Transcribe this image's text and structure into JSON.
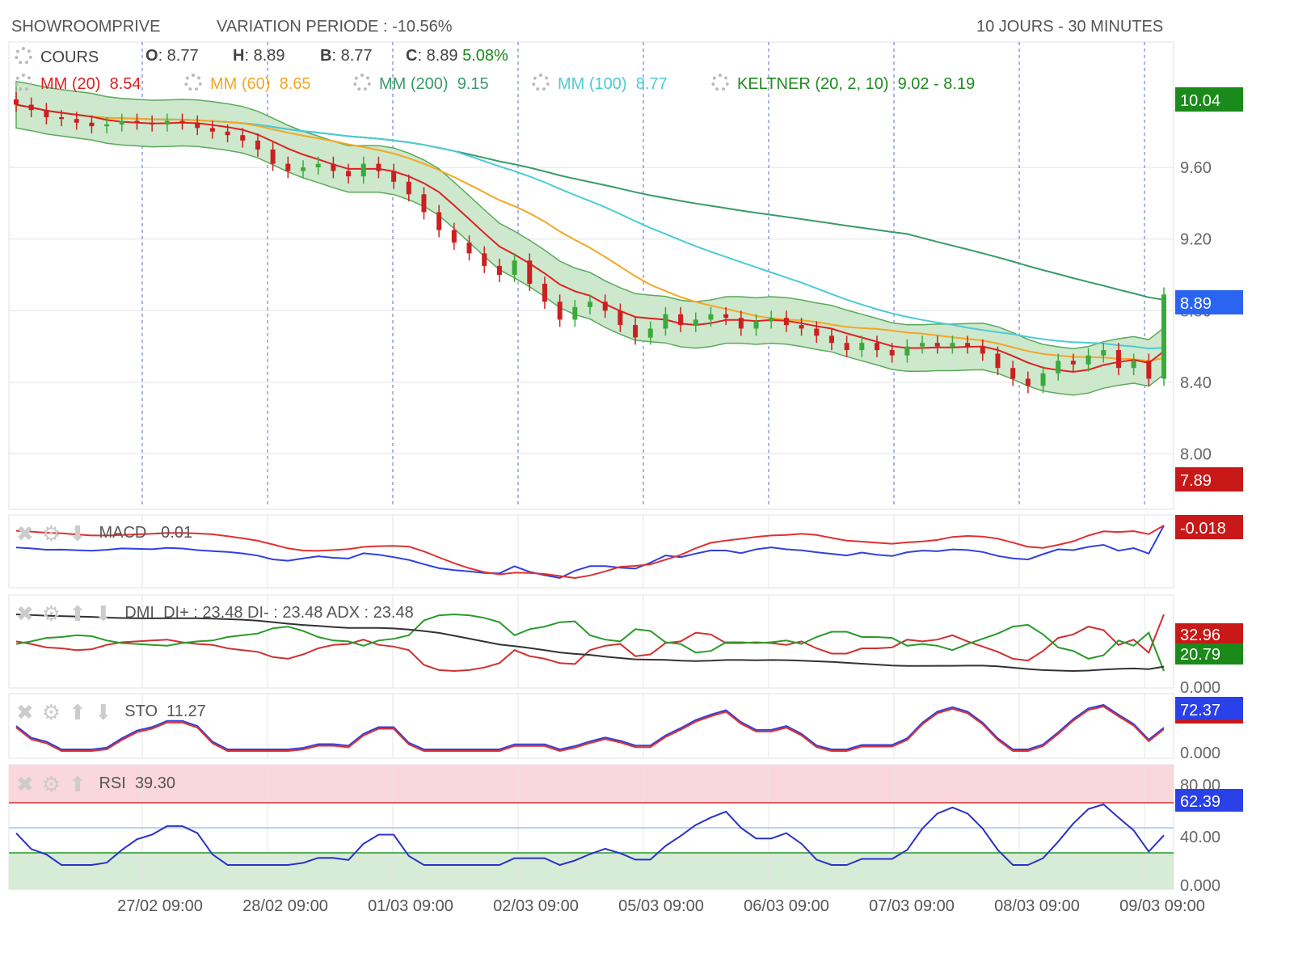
{
  "header": {
    "symbol": "SHOWROOMPRIVE",
    "variation": "VARIATION PERIODE : -10.56%",
    "timeframe": "10 JOURS - 30 MINUTES"
  },
  "quote": {
    "label": "COURS",
    "open_label": "O",
    "open": ": 8.77",
    "high_label": "H",
    "high": ": 8.89",
    "low_label": "B",
    "low": ": 8.77",
    "close_label": "C",
    "close": ": 8.89",
    "change": "5.08%"
  },
  "indicators": [
    {
      "label": "MM (20)",
      "value": "8.54",
      "color": "#e02020"
    },
    {
      "label": "MM (60)",
      "value": "8.65",
      "color": "#f5a623"
    },
    {
      "label": "MM (200)",
      "value": "9.15",
      "color": "#3a9a6a"
    },
    {
      "label": "MM (100)",
      "value": "8.77",
      "color": "#4ccbd6"
    },
    {
      "label": "KELTNER (20, 2, 10)",
      "value": "9.02 - 8.19",
      "color": "#1e8a1e"
    }
  ],
  "panels": {
    "macd": {
      "label": "MACD",
      "value": "-0.01",
      "badge": "-0.018"
    },
    "dmi": {
      "label": "DMI",
      "value": "DI+ : 23.48 DI- : 23.48 ADX : 23.48",
      "badge_red": "32.96",
      "badge_green": "20.79",
      "axis": "0.000"
    },
    "sto": {
      "label": "STO",
      "value": "11.27",
      "badge": "72.37",
      "axis": "0.000"
    },
    "rsi": {
      "label": "RSI",
      "value": "39.30",
      "badge": "62.39",
      "ticks": [
        "80.00",
        "40.00",
        "0.000"
      ]
    }
  },
  "colors": {
    "up": "#3aaa3a",
    "down": "#cc2020",
    "keltner_fill": "#cde8cd",
    "grid": "#e3e3e3",
    "vline": "#5a6ad8",
    "macd_line": "#3040e0",
    "signal_line": "#e03030",
    "badge_green": "#1a8a1a",
    "badge_red": "#c81818",
    "badge_blue": "#2a64f0"
  },
  "chart_data": {
    "type": "candlestick",
    "y_ticks": [
      "10.04",
      "9.60",
      "9.20",
      "8.80",
      "8.40",
      "8.00",
      "7.89"
    ],
    "ylim": [
      7.7,
      10.3
    ],
    "last_price": "8.89",
    "price_badges": {
      "high": "10.04",
      "last": "8.89",
      "low": "7.89"
    },
    "x_labels": [
      "27/02 09:00",
      "28/02 09:00",
      "01/03 09:00",
      "02/03 09:00",
      "05/03 09:00",
      "06/03 09:00",
      "07/03 09:00",
      "08/03 09:00",
      "09/03 09:00"
    ],
    "close": [
      9.95,
      9.92,
      9.88,
      9.87,
      9.85,
      9.83,
      9.84,
      9.86,
      9.85,
      9.84,
      9.86,
      9.85,
      9.82,
      9.8,
      9.78,
      9.75,
      9.7,
      9.62,
      9.58,
      9.6,
      9.62,
      9.58,
      9.55,
      9.62,
      9.58,
      9.52,
      9.45,
      9.35,
      9.25,
      9.18,
      9.12,
      9.05,
      9.0,
      9.08,
      8.95,
      8.85,
      8.75,
      8.82,
      8.85,
      8.8,
      8.72,
      8.65,
      8.7,
      8.78,
      8.72,
      8.75,
      8.78,
      8.76,
      8.7,
      8.74,
      8.76,
      8.72,
      8.7,
      8.66,
      8.62,
      8.58,
      8.62,
      8.58,
      8.55,
      8.6,
      8.62,
      8.6,
      8.62,
      8.6,
      8.56,
      8.48,
      8.42,
      8.38,
      8.45,
      8.52,
      8.5,
      8.55,
      8.58,
      8.48,
      8.52,
      8.42,
      8.89
    ]
  }
}
